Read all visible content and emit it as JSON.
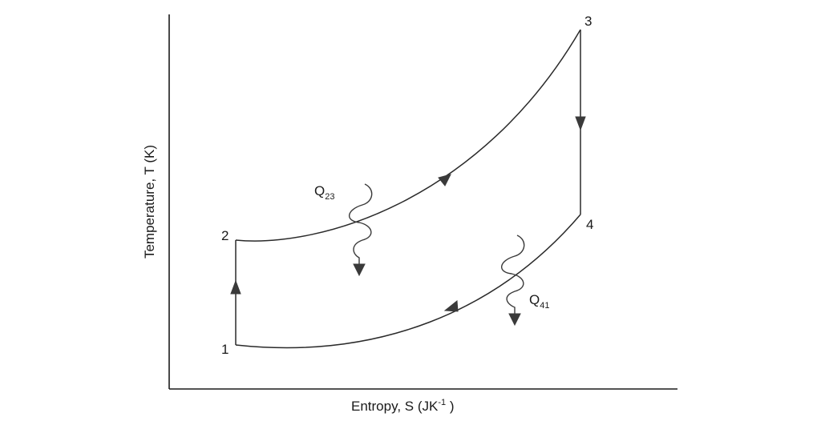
{
  "diagram": {
    "axes": {
      "x_label": "Entropy, S (JK",
      "x_label_sup": "-1",
      "x_label_close": " )",
      "y_label": "Temperature, T (K)"
    },
    "states": [
      "1",
      "2",
      "3",
      "4"
    ],
    "heat_flows": [
      {
        "symbol": "Q",
        "subscript": "23"
      },
      {
        "symbol": "Q",
        "subscript": "41"
      }
    ]
  }
}
